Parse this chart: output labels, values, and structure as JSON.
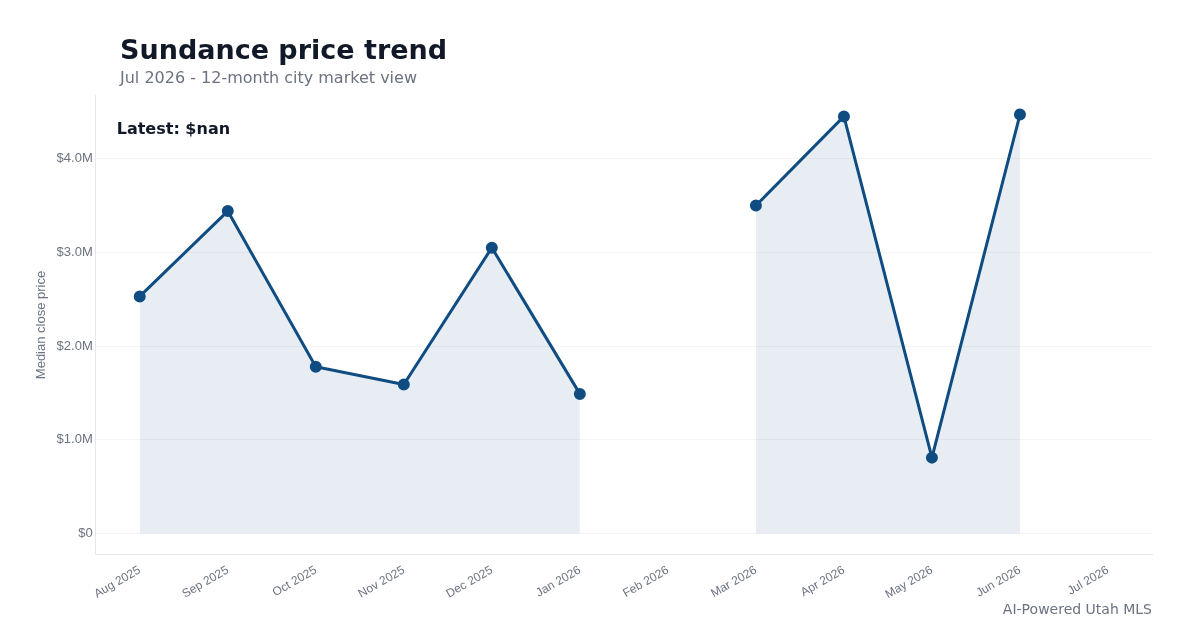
{
  "chart_data": {
    "type": "area",
    "title": "Sundance price trend",
    "subtitle": "Jul 2026 - 12-month city market view",
    "ylabel": "Median close price",
    "categories": [
      "Aug 2025",
      "Sep 2025",
      "Oct 2025",
      "Nov 2025",
      "Dec 2025",
      "Jan 2026",
      "Feb 2026",
      "Mar 2026",
      "Apr 2026",
      "May 2026",
      "Jun 2026",
      "Jul 2026"
    ],
    "series": [
      {
        "color": "#0f4c81",
        "values": [
          2.53,
          3.44,
          1.78,
          1.59,
          3.05,
          1.49,
          null,
          3.5,
          4.45,
          0.81,
          4.47,
          null
        ]
      }
    ],
    "ylim": [
      -0.22,
      4.67
    ],
    "yticks": [
      {
        "value": 0,
        "label": "$0"
      },
      {
        "value": 1,
        "label": "$1.0M"
      },
      {
        "value": 2,
        "label": "$2.0M"
      },
      {
        "value": 3,
        "label": "$3.0M"
      },
      {
        "value": 4,
        "label": "$4.0M"
      }
    ],
    "grid": "y",
    "marker": "circle",
    "legend": false,
    "annotations": [
      "Latest: $nan",
      "AI-Powered Utah MLS"
    ]
  }
}
